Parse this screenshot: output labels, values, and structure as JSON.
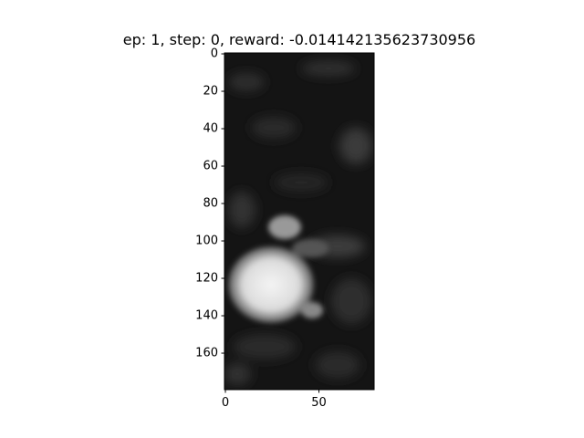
{
  "chart_data": {
    "type": "image",
    "title": "ep: 1, step: 0, reward: -0.014142135623730956",
    "xlim": [
      -0.5,
      79.5
    ],
    "ylim": [
      179.5,
      -0.5
    ],
    "xticks": [
      0,
      50
    ],
    "yticks": [
      0,
      20,
      40,
      60,
      80,
      100,
      120,
      140,
      160
    ],
    "colormap": "gray"
  }
}
